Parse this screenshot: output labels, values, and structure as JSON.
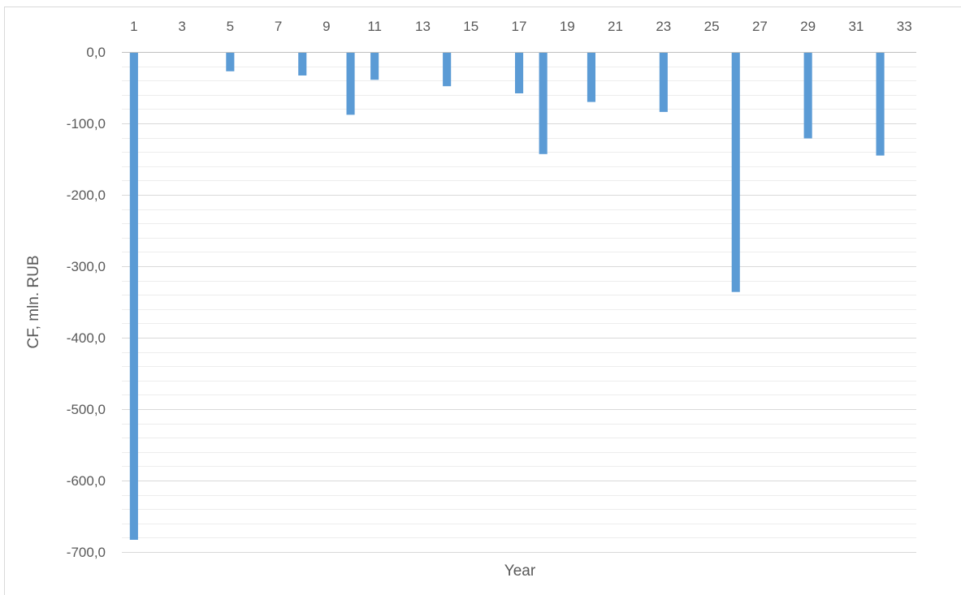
{
  "chart_data": {
    "type": "bar",
    "title": "",
    "xlabel": "Year",
    "ylabel": "CF, mln. RUB",
    "categories": [
      1,
      2,
      3,
      4,
      5,
      6,
      7,
      8,
      9,
      10,
      11,
      12,
      13,
      14,
      15,
      16,
      17,
      18,
      19,
      20,
      21,
      22,
      23,
      24,
      25,
      26,
      27,
      28,
      29,
      30,
      31,
      32,
      33
    ],
    "x_tick_labels": [
      "1",
      "3",
      "5",
      "7",
      "9",
      "11",
      "13",
      "15",
      "17",
      "19",
      "21",
      "23",
      "25",
      "27",
      "29",
      "31",
      "33"
    ],
    "values": [
      -683,
      0,
      0,
      0,
      -27,
      0,
      0,
      -33,
      0,
      -88,
      -39,
      0,
      0,
      -48,
      0,
      0,
      -58,
      -143,
      0,
      -70,
      0,
      0,
      -84,
      0,
      0,
      -336,
      0,
      0,
      -121,
      0,
      0,
      -145,
      0
    ],
    "ylim": [
      -700,
      0
    ],
    "y_tick_values": [
      0,
      -100,
      -200,
      -300,
      -400,
      -500,
      -600,
      -700
    ],
    "y_tick_labels": [
      "0,0",
      "-100,0",
      "-200,0",
      "-300,0",
      "-400,0",
      "-500,0",
      "-600,0",
      "-700,0"
    ],
    "x_axis_position": "top",
    "grid": true,
    "legend": "none",
    "colors": {
      "bar": "#5b9bd5",
      "major_grid": "#d9d9d9",
      "minor_grid": "#ededed",
      "axis_line": "#bfbfbf",
      "text": "#595959"
    }
  }
}
